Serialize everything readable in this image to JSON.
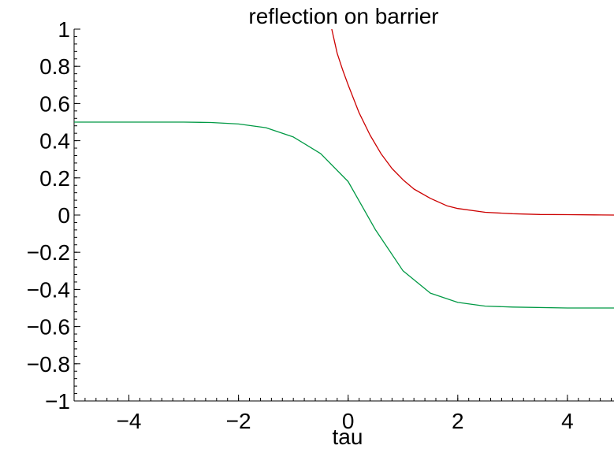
{
  "chart_data": {
    "type": "line",
    "title": "reflection on barrier",
    "xlabel": "tau",
    "ylabel": "",
    "xlim": [
      -5,
      4.85
    ],
    "ylim": [
      -1,
      1
    ],
    "x_ticks": [
      -4,
      -2,
      0,
      2,
      4
    ],
    "x_tick_labels": [
      "−4",
      "−2",
      "0",
      "2",
      "4"
    ],
    "y_ticks": [
      -1,
      -0.8,
      -0.6,
      -0.4,
      -0.2,
      0,
      0.2,
      0.4,
      0.6,
      0.8,
      1
    ],
    "y_tick_labels": [
      "−1",
      "−0.8",
      "−0.6",
      "−0.4",
      "−0.2",
      "0",
      "0.2",
      "0.4",
      "0.6",
      "0.8",
      "1"
    ],
    "grid": false,
    "legend": "none",
    "series": [
      {
        "color": "#cc0000",
        "x": [
          -0.3,
          -0.2,
          -0.1,
          0.0,
          0.2,
          0.4,
          0.6,
          0.8,
          1.0,
          1.2,
          1.5,
          1.8,
          2.0,
          2.5,
          3.0,
          3.5,
          4.0,
          4.5,
          4.85
        ],
        "y": [
          1.0,
          0.87,
          0.78,
          0.7,
          0.55,
          0.43,
          0.33,
          0.25,
          0.19,
          0.14,
          0.09,
          0.05,
          0.035,
          0.015,
          0.007,
          0.003,
          0.002,
          0.001,
          0.0
        ]
      },
      {
        "color": "#009944",
        "x": [
          -5.0,
          -4.0,
          -3.0,
          -2.5,
          -2.0,
          -1.5,
          -1.0,
          -0.5,
          0.0,
          0.5,
          1.0,
          1.5,
          2.0,
          2.5,
          3.0,
          4.0,
          4.85
        ],
        "y": [
          0.5,
          0.5,
          0.5,
          0.498,
          0.49,
          0.47,
          0.42,
          0.33,
          0.18,
          -0.08,
          -0.3,
          -0.42,
          -0.47,
          -0.49,
          -0.495,
          -0.5,
          -0.5
        ]
      }
    ]
  }
}
